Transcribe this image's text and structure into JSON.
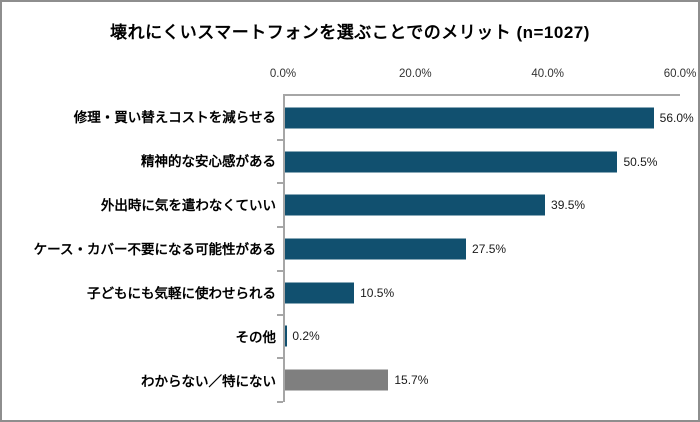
{
  "colors": {
    "bar_primary": "#11506F",
    "bar_neutral": "#7F7F7F",
    "axis_line": "#A6A6A6",
    "text": "#1A1A1A",
    "frame_border": "#8E8E8E"
  },
  "chart_data": {
    "type": "bar",
    "orientation": "horizontal",
    "title": "壊れにくいスマートフォンを選ぶことでのメリット (n=1027)",
    "categories": [
      "修理・買い替えコストを減らせる",
      "精神的な安心感がある",
      "外出時に気を遣わなくていい",
      "ケース・カバー不要になる可能性がある",
      "子どもにも気軽に使わせられる",
      "その他",
      "わからない／特にない"
    ],
    "values": [
      56.0,
      50.5,
      39.5,
      27.5,
      10.5,
      0.2,
      15.7
    ],
    "value_labels": [
      "56.0%",
      "50.5%",
      "39.5%",
      "27.5%",
      "10.5%",
      "0.2%",
      "15.7%"
    ],
    "bar_colors": [
      "#11506F",
      "#11506F",
      "#11506F",
      "#11506F",
      "#11506F",
      "#11506F",
      "#7F7F7F"
    ],
    "xlim": [
      0,
      60
    ],
    "x_ticks": [
      {
        "label": "0.0%",
        "value": 0
      },
      {
        "label": "20.0%",
        "value": 20
      },
      {
        "label": "40.0%",
        "value": 40
      },
      {
        "label": "60.0%",
        "value": 60
      }
    ],
    "xlabel": "",
    "ylabel": "",
    "grid": "none",
    "legend": "none"
  }
}
